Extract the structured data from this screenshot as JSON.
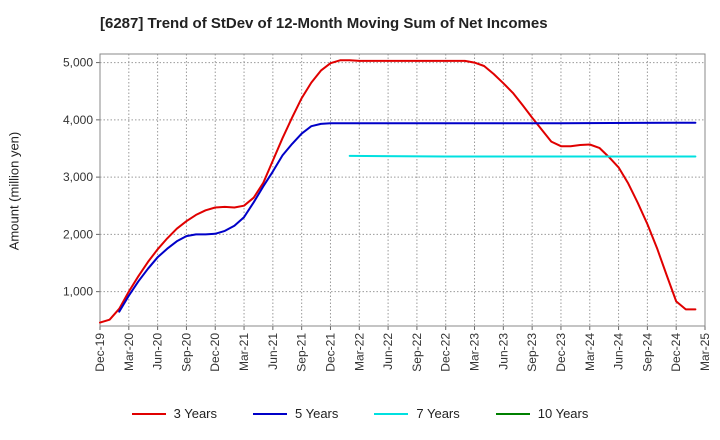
{
  "chart_data": {
    "type": "line",
    "title": "[6287]  Trend of StDev of 12-Month Moving Sum of Net Incomes",
    "ylabel": "Amount (million yen)",
    "xlabel": "",
    "ylim": [
      400,
      5150
    ],
    "x_ticks": [
      "Dec-19",
      "Mar-20",
      "Jun-20",
      "Sep-20",
      "Dec-20",
      "Mar-21",
      "Jun-21",
      "Sep-21",
      "Dec-21",
      "Mar-22",
      "Jun-22",
      "Sep-22",
      "Dec-22",
      "Mar-23",
      "Jun-23",
      "Sep-23",
      "Dec-23",
      "Mar-24",
      "Jun-24",
      "Sep-24",
      "Dec-24",
      "Mar-25"
    ],
    "y_ticks": [
      1000,
      2000,
      3000,
      4000,
      5000
    ],
    "y_tick_labels": [
      "1,000",
      "2,000",
      "3,000",
      "4,000",
      "5,000"
    ],
    "grid": true,
    "legend_position": "bottom",
    "series": [
      {
        "name": "3 Years",
        "color": "#e00000",
        "points": [
          [
            "Dec-19",
            460
          ],
          [
            "Jan-20",
            510
          ],
          [
            "Feb-20",
            700
          ],
          [
            "Mar-20",
            1000
          ],
          [
            "Apr-20",
            1270
          ],
          [
            "May-20",
            1520
          ],
          [
            "Jun-20",
            1740
          ],
          [
            "Jul-20",
            1930
          ],
          [
            "Aug-20",
            2100
          ],
          [
            "Sep-20",
            2230
          ],
          [
            "Oct-20",
            2340
          ],
          [
            "Nov-20",
            2420
          ],
          [
            "Dec-20",
            2470
          ],
          [
            "Jan-21",
            2480
          ],
          [
            "Feb-21",
            2470
          ],
          [
            "Mar-21",
            2500
          ],
          [
            "Apr-21",
            2640
          ],
          [
            "May-21",
            2900
          ],
          [
            "Jun-21",
            3290
          ],
          [
            "Jul-21",
            3680
          ],
          [
            "Aug-21",
            4040
          ],
          [
            "Sep-21",
            4380
          ],
          [
            "Oct-21",
            4650
          ],
          [
            "Nov-21",
            4860
          ],
          [
            "Dec-21",
            4990
          ],
          [
            "Jan-22",
            5040
          ],
          [
            "Feb-22",
            5040
          ],
          [
            "Mar-22",
            5030
          ],
          [
            "Jun-22",
            5030
          ],
          [
            "Sep-22",
            5030
          ],
          [
            "Dec-22",
            5030
          ],
          [
            "Jan-23",
            5030
          ],
          [
            "Feb-23",
            5030
          ],
          [
            "Mar-23",
            5000
          ],
          [
            "Apr-23",
            4940
          ],
          [
            "May-23",
            4800
          ],
          [
            "Jun-23",
            4640
          ],
          [
            "Jul-23",
            4470
          ],
          [
            "Aug-23",
            4260
          ],
          [
            "Sep-23",
            4040
          ],
          [
            "Oct-23",
            3830
          ],
          [
            "Nov-23",
            3620
          ],
          [
            "Dec-23",
            3540
          ],
          [
            "Jan-24",
            3540
          ],
          [
            "Feb-24",
            3560
          ],
          [
            "Mar-24",
            3570
          ],
          [
            "Apr-24",
            3510
          ],
          [
            "May-24",
            3350
          ],
          [
            "Jun-24",
            3170
          ],
          [
            "Jul-24",
            2890
          ],
          [
            "Aug-24",
            2550
          ],
          [
            "Sep-24",
            2180
          ],
          [
            "Oct-24",
            1760
          ],
          [
            "Nov-24",
            1290
          ],
          [
            "Dec-24",
            830
          ],
          [
            "Jan-25",
            690
          ],
          [
            "Feb-25",
            690
          ]
        ]
      },
      {
        "name": "5 Years",
        "color": "#0000c8",
        "points": [
          [
            "Feb-20",
            650
          ],
          [
            "Mar-20",
            930
          ],
          [
            "Apr-20",
            1180
          ],
          [
            "May-20",
            1400
          ],
          [
            "Jun-20",
            1600
          ],
          [
            "Jul-20",
            1750
          ],
          [
            "Aug-20",
            1880
          ],
          [
            "Sep-20",
            1970
          ],
          [
            "Oct-20",
            2000
          ],
          [
            "Nov-20",
            2000
          ],
          [
            "Dec-20",
            2010
          ],
          [
            "Jan-21",
            2060
          ],
          [
            "Feb-21",
            2150
          ],
          [
            "Mar-21",
            2300
          ],
          [
            "Apr-21",
            2560
          ],
          [
            "May-21",
            2840
          ],
          [
            "Jun-21",
            3100
          ],
          [
            "Jul-21",
            3380
          ],
          [
            "Aug-21",
            3580
          ],
          [
            "Sep-21",
            3760
          ],
          [
            "Oct-21",
            3890
          ],
          [
            "Nov-21",
            3930
          ],
          [
            "Dec-21",
            3940
          ],
          [
            "Dec-22",
            3940
          ],
          [
            "Dec-23",
            3940
          ],
          [
            "Dec-24",
            3950
          ],
          [
            "Feb-25",
            3950
          ]
        ]
      },
      {
        "name": "7 Years",
        "color": "#00e0e0",
        "points": [
          [
            "Feb-22",
            3370
          ],
          [
            "Dec-22",
            3360
          ],
          [
            "Dec-23",
            3360
          ],
          [
            "Feb-25",
            3360
          ]
        ]
      },
      {
        "name": "10 Years",
        "color": "#008000",
        "points": []
      }
    ]
  }
}
